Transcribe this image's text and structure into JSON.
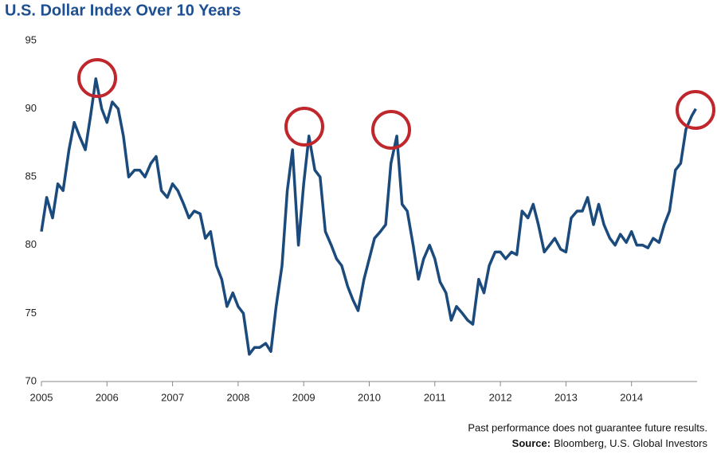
{
  "chart_data": {
    "type": "line",
    "title": "U.S. Dollar Index Over 10 Years",
    "note": "Past performance does not guarantee future results.",
    "source_label": "Source:",
    "source": "Bloomberg, U.S. Global Investors",
    "color": "#1b4a7c",
    "x": [
      2005.0,
      2005.08,
      2005.17,
      2005.25,
      2005.33,
      2005.42,
      2005.5,
      2005.58,
      2005.67,
      2005.75,
      2005.83,
      2005.92,
      2006.0,
      2006.08,
      2006.17,
      2006.25,
      2006.33,
      2006.42,
      2006.5,
      2006.58,
      2006.67,
      2006.75,
      2006.83,
      2006.92,
      2007.0,
      2007.08,
      2007.17,
      2007.25,
      2007.33,
      2007.42,
      2007.5,
      2007.58,
      2007.67,
      2007.75,
      2007.83,
      2007.92,
      2008.0,
      2008.08,
      2008.17,
      2008.25,
      2008.33,
      2008.42,
      2008.5,
      2008.58,
      2008.67,
      2008.75,
      2008.83,
      2008.92,
      2009.0,
      2009.08,
      2009.17,
      2009.25,
      2009.33,
      2009.42,
      2009.5,
      2009.58,
      2009.67,
      2009.75,
      2009.83,
      2009.92,
      2010.0,
      2010.08,
      2010.17,
      2010.25,
      2010.33,
      2010.42,
      2010.5,
      2010.58,
      2010.67,
      2010.75,
      2010.83,
      2010.92,
      2011.0,
      2011.08,
      2011.17,
      2011.25,
      2011.33,
      2011.42,
      2011.5,
      2011.58,
      2011.67,
      2011.75,
      2011.83,
      2011.92,
      2012.0,
      2012.08,
      2012.17,
      2012.25,
      2012.33,
      2012.42,
      2012.5,
      2012.58,
      2012.67,
      2012.75,
      2012.83,
      2012.92,
      2013.0,
      2013.08,
      2013.17,
      2013.25,
      2013.33,
      2013.42,
      2013.5,
      2013.58,
      2013.67,
      2013.75,
      2013.83,
      2013.92,
      2014.0,
      2014.08,
      2014.17,
      2014.25,
      2014.33,
      2014.42,
      2014.5,
      2014.58,
      2014.67,
      2014.75,
      2014.83,
      2014.92,
      2014.98
    ],
    "values": [
      81,
      83.5,
      82,
      84.5,
      84,
      87,
      89,
      88,
      87,
      89.5,
      92.2,
      90,
      89,
      90.5,
      90,
      88,
      85,
      85.5,
      85.5,
      85,
      86,
      86.5,
      84,
      83.5,
      84.5,
      84,
      83,
      82,
      82.5,
      82.3,
      80.5,
      81,
      78.5,
      77.5,
      75.5,
      76.5,
      75.5,
      75,
      72,
      72.5,
      72.5,
      72.8,
      72.2,
      75.5,
      78.5,
      84,
      87,
      80,
      84.5,
      88,
      85.5,
      85,
      81,
      80,
      79,
      78.5,
      77,
      76,
      75.2,
      77.5,
      79,
      80.5,
      81,
      81.5,
      86,
      88,
      83,
      82.5,
      80,
      77.5,
      79,
      80,
      79,
      77.3,
      76.5,
      74.5,
      75.5,
      75,
      74.5,
      74.2,
      77.5,
      76.5,
      78.5,
      79.5,
      79.5,
      79,
      79.5,
      79.3,
      82.5,
      82,
      83,
      81.5,
      79.5,
      80,
      80.5,
      79.7,
      79.5,
      82,
      82.5,
      82.5,
      83.5,
      81.5,
      83,
      81.5,
      80.5,
      80,
      80.8,
      80.2,
      81,
      80,
      80,
      79.8,
      80.5,
      80.2,
      81.5,
      82.5,
      85.5,
      86,
      88.5,
      89.5,
      90
    ],
    "xlim": [
      2005,
      2015
    ],
    "xticks": [
      2005,
      2006,
      2007,
      2008,
      2009,
      2010,
      2011,
      2012,
      2013,
      2014
    ],
    "ylim": [
      70,
      95
    ],
    "yticks": [
      70,
      75,
      80,
      85,
      90,
      95
    ]
  }
}
